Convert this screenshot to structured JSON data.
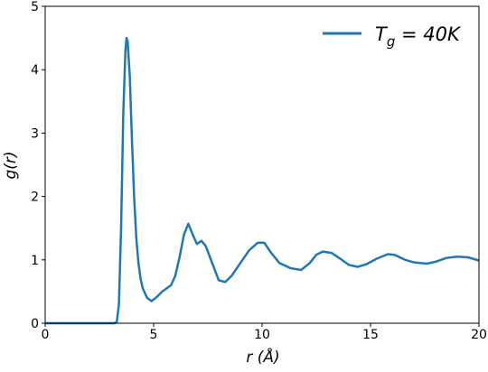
{
  "chart_data": {
    "type": "line",
    "xlabel": "r (Å)",
    "ylabel": "g(r)",
    "x": [
      0,
      1,
      2,
      3,
      3.2,
      3.3,
      3.4,
      3.5,
      3.6,
      3.7,
      3.75,
      3.8,
      3.9,
      4.0,
      4.1,
      4.2,
      4.3,
      4.4,
      4.5,
      4.7,
      4.9,
      5.1,
      5.4,
      5.8,
      6.0,
      6.2,
      6.4,
      6.6,
      6.8,
      7.0,
      7.2,
      7.4,
      7.7,
      8.0,
      8.3,
      8.6,
      9.0,
      9.4,
      9.8,
      10.1,
      10.4,
      10.8,
      11.3,
      11.8,
      12.2,
      12.5,
      12.8,
      13.2,
      13.6,
      14.0,
      14.4,
      14.8,
      15.3,
      15.8,
      16.1,
      16.6,
      17.0,
      17.6,
      18.0,
      18.5,
      19.0,
      19.5,
      20
    ],
    "series": [
      {
        "name": "Tg = 40K",
        "color": "#1f77b4",
        "values": [
          0,
          0,
          0,
          0,
          0,
          0.02,
          0.3,
          1.5,
          3.3,
          4.3,
          4.5,
          4.45,
          3.9,
          2.9,
          2.0,
          1.35,
          0.95,
          0.7,
          0.55,
          0.4,
          0.35,
          0.4,
          0.5,
          0.6,
          0.75,
          1.05,
          1.4,
          1.57,
          1.4,
          1.25,
          1.3,
          1.22,
          0.95,
          0.68,
          0.65,
          0.75,
          0.95,
          1.15,
          1.27,
          1.27,
          1.12,
          0.95,
          0.87,
          0.84,
          0.95,
          1.08,
          1.13,
          1.11,
          1.02,
          0.92,
          0.89,
          0.93,
          1.02,
          1.09,
          1.08,
          1.0,
          0.96,
          0.94,
          0.97,
          1.03,
          1.05,
          1.04,
          0.99
        ]
      }
    ],
    "xlim": [
      0,
      20
    ],
    "xticks": [
      0,
      5,
      10,
      15,
      20
    ],
    "ylim": [
      0,
      5
    ],
    "yticks": [
      0,
      1,
      2,
      3,
      4,
      5
    ],
    "grid": false,
    "legend": "upper right"
  }
}
